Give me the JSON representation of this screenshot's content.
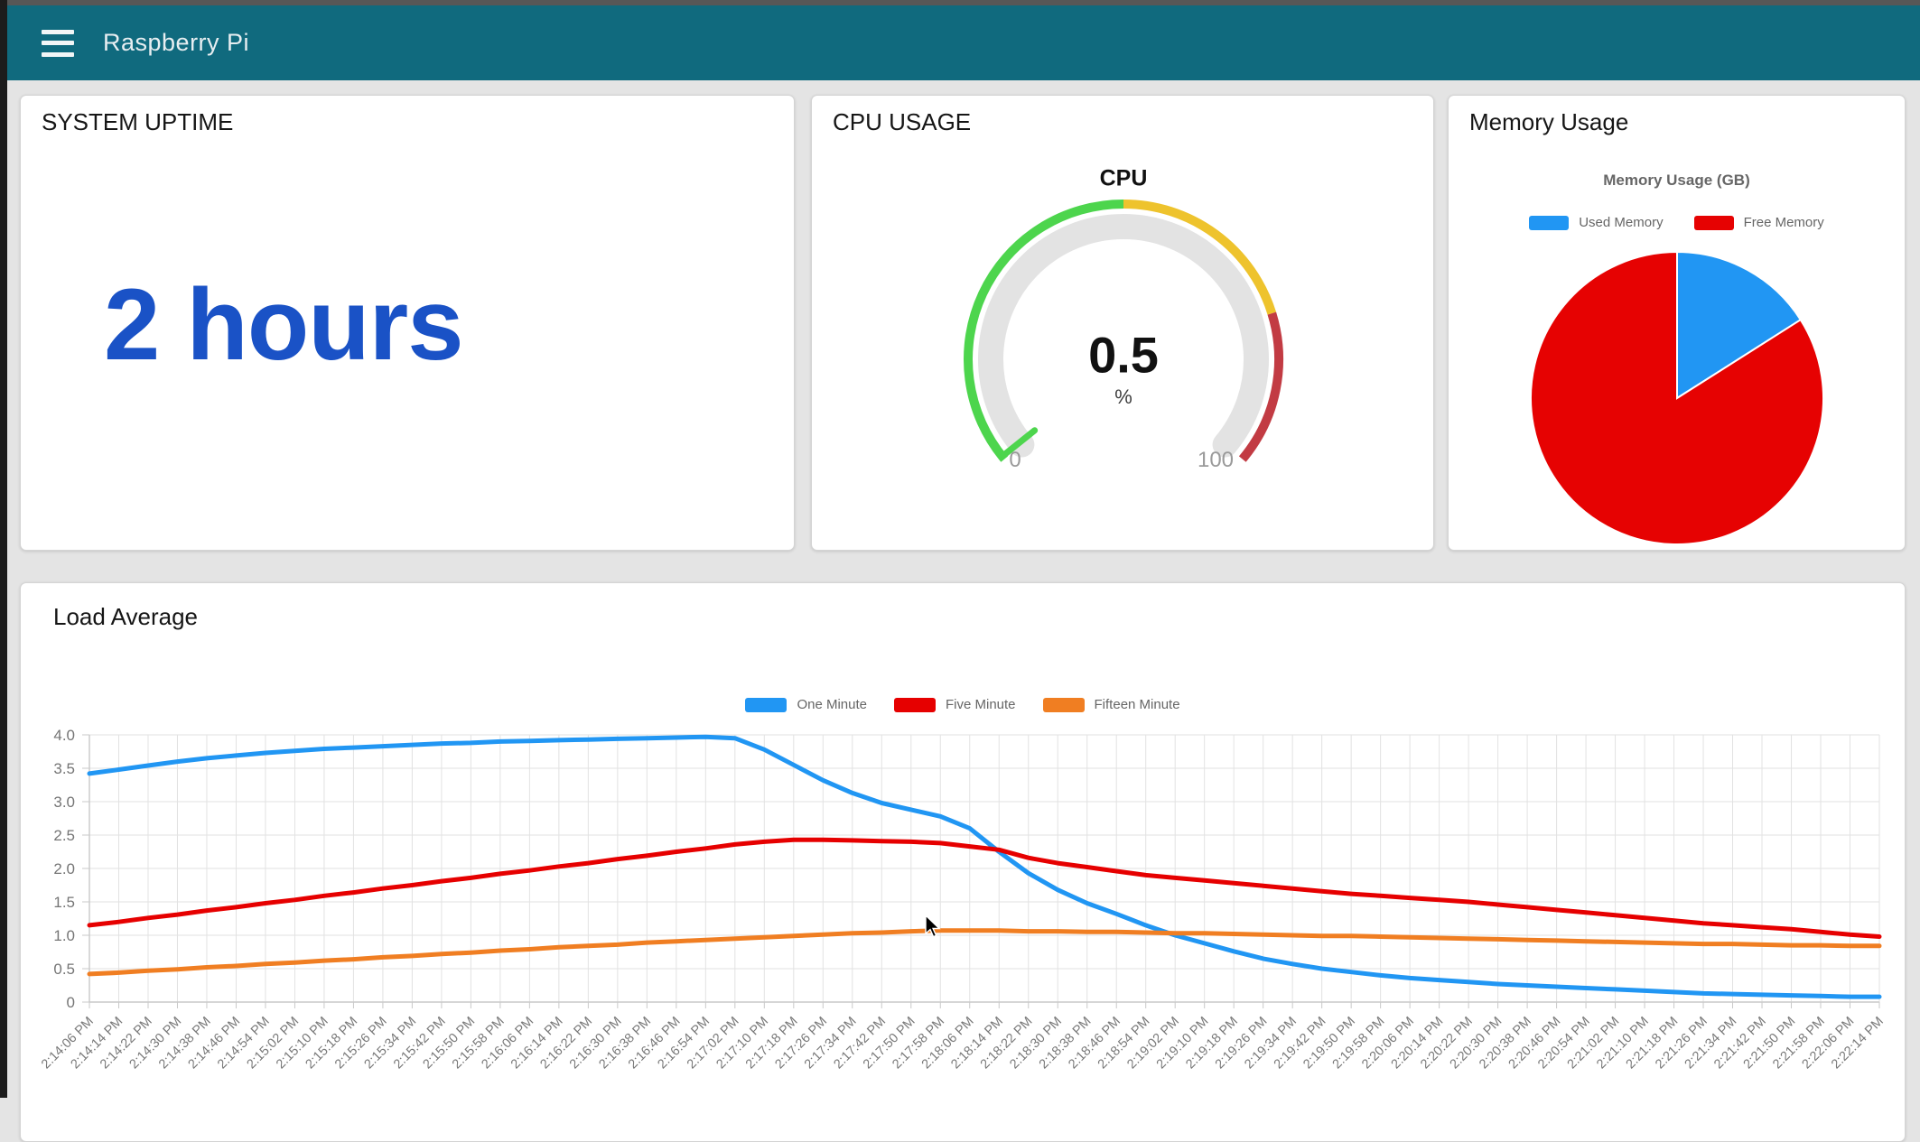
{
  "window": {
    "top_strip_color": "#575757",
    "side_strip_color": "#1c1c1c"
  },
  "header": {
    "title": "Raspberry Pi",
    "bg_color": "#106a7e",
    "menu_icon": "hamburger-icon"
  },
  "cards": {
    "uptime": {
      "title": "SYSTEM UPTIME",
      "value": "2 hours",
      "value_color": "#1a52c6"
    },
    "cpu": {
      "title": "CPU USAGE"
    },
    "memory": {
      "title": "Memory Usage"
    },
    "load": {
      "title": "Load Average"
    }
  },
  "chart_data": [
    {
      "type": "gauge",
      "title": "CPU",
      "units": "%",
      "value": 0.5,
      "min": 0,
      "max": 100,
      "track_color": "#e3e3e3",
      "needle_color": "#4dd54d",
      "sectors": [
        {
          "from": 0,
          "to": 50,
          "color": "#4dd54d"
        },
        {
          "from": 50,
          "to": 78,
          "color": "#eec32d"
        },
        {
          "from": 78,
          "to": 100,
          "color": "#c23b43"
        }
      ]
    },
    {
      "type": "pie",
      "title": "Memory Usage (GB)",
      "legend_position": "top",
      "labels": [
        "Used Memory",
        "Free Memory"
      ],
      "colors": [
        "#2196f3",
        "#e60202"
      ],
      "values_pct": [
        16,
        84
      ]
    },
    {
      "type": "line",
      "title": "Load Average",
      "legend_position": "top",
      "grid": true,
      "ylim": [
        0,
        4
      ],
      "yticks": [
        "4.0",
        "3.5",
        "3.0",
        "2.5",
        "2.0",
        "1.5",
        "1.0",
        "0.5",
        "0"
      ],
      "categories": [
        "2:14:06 PM",
        "2:14:14 PM",
        "2:14:22 PM",
        "2:14:30 PM",
        "2:14:38 PM",
        "2:14:46 PM",
        "2:14:54 PM",
        "2:15:02 PM",
        "2:15:10 PM",
        "2:15:18 PM",
        "2:15:26 PM",
        "2:15:34 PM",
        "2:15:42 PM",
        "2:15:50 PM",
        "2:15:58 PM",
        "2:16:06 PM",
        "2:16:14 PM",
        "2:16:22 PM",
        "2:16:30 PM",
        "2:16:38 PM",
        "2:16:46 PM",
        "2:16:54 PM",
        "2:17:02 PM",
        "2:17:10 PM",
        "2:17:18 PM",
        "2:17:26 PM",
        "2:17:34 PM",
        "2:17:42 PM",
        "2:17:50 PM",
        "2:17:58 PM",
        "2:18:06 PM",
        "2:18:14 PM",
        "2:18:22 PM",
        "2:18:30 PM",
        "2:18:38 PM",
        "2:18:46 PM",
        "2:18:54 PM",
        "2:19:02 PM",
        "2:19:10 PM",
        "2:19:18 PM",
        "2:19:26 PM",
        "2:19:34 PM",
        "2:19:42 PM",
        "2:19:50 PM",
        "2:19:58 PM",
        "2:20:06 PM",
        "2:20:14 PM",
        "2:20:22 PM",
        "2:20:30 PM",
        "2:20:38 PM",
        "2:20:46 PM",
        "2:20:54 PM",
        "2:21:02 PM",
        "2:21:10 PM",
        "2:21:18 PM",
        "2:21:26 PM",
        "2:21:34 PM",
        "2:21:42 PM",
        "2:21:50 PM",
        "2:21:58 PM",
        "2:22:06 PM",
        "2:22:14 PM"
      ],
      "series": [
        {
          "name": "One Minute",
          "color": "#2196f3",
          "values": [
            3.42,
            3.48,
            3.54,
            3.6,
            3.65,
            3.69,
            3.73,
            3.76,
            3.79,
            3.81,
            3.83,
            3.85,
            3.87,
            3.88,
            3.9,
            3.91,
            3.92,
            3.93,
            3.94,
            3.95,
            3.96,
            3.97,
            3.95,
            3.78,
            3.55,
            3.32,
            3.13,
            2.98,
            2.88,
            2.78,
            2.6,
            2.25,
            1.93,
            1.68,
            1.48,
            1.32,
            1.15,
            1.0,
            0.88,
            0.76,
            0.65,
            0.57,
            0.5,
            0.45,
            0.4,
            0.36,
            0.33,
            0.3,
            0.27,
            0.25,
            0.23,
            0.21,
            0.19,
            0.17,
            0.15,
            0.13,
            0.12,
            0.11,
            0.1,
            0.09,
            0.08,
            0.08
          ]
        },
        {
          "name": "Five Minute",
          "color": "#e60000",
          "values": [
            1.15,
            1.2,
            1.26,
            1.31,
            1.37,
            1.42,
            1.48,
            1.53,
            1.59,
            1.64,
            1.7,
            1.75,
            1.81,
            1.86,
            1.92,
            1.97,
            2.03,
            2.08,
            2.14,
            2.19,
            2.25,
            2.3,
            2.36,
            2.4,
            2.43,
            2.43,
            2.42,
            2.41,
            2.4,
            2.38,
            2.33,
            2.28,
            2.16,
            2.08,
            2.02,
            1.96,
            1.9,
            1.86,
            1.82,
            1.78,
            1.74,
            1.7,
            1.66,
            1.62,
            1.59,
            1.56,
            1.53,
            1.5,
            1.46,
            1.42,
            1.38,
            1.34,
            1.3,
            1.26,
            1.22,
            1.18,
            1.15,
            1.12,
            1.09,
            1.05,
            1.01,
            0.98
          ]
        },
        {
          "name": "Fifteen Minute",
          "color": "#f07e22",
          "values": [
            0.42,
            0.44,
            0.47,
            0.49,
            0.52,
            0.54,
            0.57,
            0.59,
            0.62,
            0.64,
            0.67,
            0.69,
            0.72,
            0.74,
            0.77,
            0.79,
            0.82,
            0.84,
            0.86,
            0.89,
            0.91,
            0.93,
            0.95,
            0.97,
            0.99,
            1.01,
            1.03,
            1.04,
            1.06,
            1.07,
            1.07,
            1.07,
            1.06,
            1.06,
            1.05,
            1.05,
            1.04,
            1.03,
            1.03,
            1.02,
            1.01,
            1.0,
            0.99,
            0.99,
            0.98,
            0.97,
            0.96,
            0.95,
            0.94,
            0.93,
            0.92,
            0.91,
            0.9,
            0.89,
            0.88,
            0.87,
            0.87,
            0.86,
            0.85,
            0.85,
            0.84,
            0.84
          ]
        }
      ]
    }
  ]
}
